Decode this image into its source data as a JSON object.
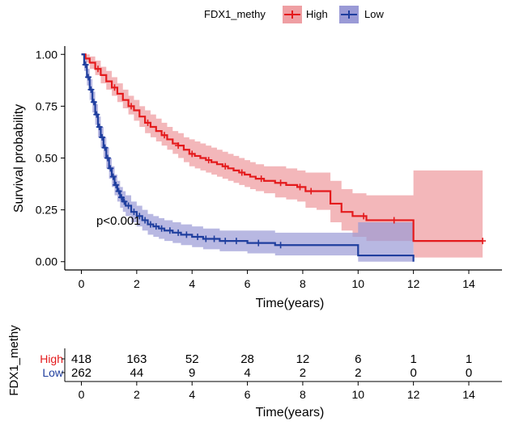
{
  "chart_data": {
    "type": "line",
    "subtype": "kaplan-meier survival curve with 95% confidence bands and number-at-risk table",
    "legend": {
      "title": "FDX1_methy",
      "position": "top",
      "entries": [
        "High",
        "Low"
      ]
    },
    "ylabel": "Survival probability",
    "xlabel": "Time(years)",
    "xlim": [
      -0.6,
      15.2
    ],
    "ylim": [
      -0.04,
      1.04
    ],
    "xticks": [
      0,
      2,
      4,
      6,
      8,
      10,
      12,
      14
    ],
    "x_tick_labels": [
      "0",
      "2",
      "4",
      "6",
      "8",
      "10",
      "12",
      "14"
    ],
    "yticks": [
      0,
      0.25,
      0.5,
      0.75,
      1.0
    ],
    "y_tick_labels": [
      "0.00",
      "0.25",
      "0.50",
      "0.75",
      "1.00"
    ],
    "grid": false,
    "annotation": {
      "text": "p<0.001",
      "x": 0.3,
      "y": 0.18
    },
    "series": [
      {
        "name": "High",
        "color": "#e41a1c",
        "band_color": "#ef9fa3",
        "x": [
          0,
          0.15,
          0.3,
          0.5,
          0.7,
          0.9,
          1.1,
          1.3,
          1.5,
          1.7,
          1.9,
          2.1,
          2.3,
          2.5,
          2.7,
          2.9,
          3.1,
          3.3,
          3.5,
          3.7,
          3.9,
          4.1,
          4.3,
          4.5,
          4.7,
          4.9,
          5.1,
          5.3,
          5.5,
          5.7,
          5.9,
          6.1,
          6.3,
          6.6,
          7.0,
          7.4,
          7.8,
          8.1,
          8.5,
          9.0,
          9.4,
          9.8,
          10.3,
          11.0,
          11.9,
          12.0,
          14.5
        ],
        "y": [
          1.0,
          0.98,
          0.96,
          0.93,
          0.9,
          0.87,
          0.84,
          0.81,
          0.78,
          0.75,
          0.73,
          0.7,
          0.67,
          0.65,
          0.63,
          0.61,
          0.59,
          0.57,
          0.56,
          0.54,
          0.52,
          0.51,
          0.5,
          0.49,
          0.48,
          0.47,
          0.46,
          0.45,
          0.44,
          0.43,
          0.42,
          0.41,
          0.4,
          0.39,
          0.38,
          0.37,
          0.36,
          0.34,
          0.34,
          0.28,
          0.24,
          0.22,
          0.2,
          0.2,
          0.2,
          0.1,
          0.1
        ],
        "lower": [
          1.0,
          0.96,
          0.93,
          0.9,
          0.86,
          0.83,
          0.8,
          0.77,
          0.74,
          0.71,
          0.68,
          0.65,
          0.62,
          0.6,
          0.58,
          0.56,
          0.54,
          0.52,
          0.5,
          0.48,
          0.46,
          0.45,
          0.44,
          0.43,
          0.42,
          0.41,
          0.4,
          0.39,
          0.38,
          0.37,
          0.36,
          0.35,
          0.34,
          0.33,
          0.31,
          0.3,
          0.29,
          0.26,
          0.25,
          0.19,
          0.15,
          0.12,
          0.1,
          0.1,
          0.1,
          0.02,
          0.02
        ],
        "upper": [
          1.0,
          1.0,
          0.99,
          0.97,
          0.94,
          0.92,
          0.89,
          0.86,
          0.83,
          0.8,
          0.78,
          0.75,
          0.73,
          0.71,
          0.69,
          0.67,
          0.65,
          0.63,
          0.62,
          0.6,
          0.59,
          0.58,
          0.57,
          0.56,
          0.55,
          0.54,
          0.53,
          0.52,
          0.51,
          0.5,
          0.49,
          0.48,
          0.47,
          0.46,
          0.46,
          0.45,
          0.44,
          0.43,
          0.43,
          0.39,
          0.35,
          0.33,
          0.32,
          0.32,
          0.32,
          0.44,
          0.44
        ],
        "censor_x": [
          0.6,
          1.2,
          1.8,
          2.4,
          3.0,
          3.5,
          4.0,
          4.6,
          5.2,
          5.8,
          6.5,
          7.2,
          7.9,
          8.3,
          10.2,
          11.3,
          14.5
        ]
      },
      {
        "name": "Low",
        "color": "#1f3e9e",
        "band_color": "#9a9ad6",
        "x": [
          0,
          0.1,
          0.2,
          0.3,
          0.4,
          0.5,
          0.6,
          0.7,
          0.8,
          0.9,
          1.0,
          1.1,
          1.2,
          1.3,
          1.4,
          1.5,
          1.6,
          1.8,
          2.0,
          2.2,
          2.4,
          2.6,
          2.8,
          3.0,
          3.3,
          3.6,
          4.0,
          4.4,
          5.0,
          6.0,
          7.0,
          8.0,
          9.0,
          10.0,
          11.0,
          12.0
        ],
        "y": [
          1.0,
          0.95,
          0.89,
          0.83,
          0.77,
          0.71,
          0.65,
          0.6,
          0.55,
          0.5,
          0.45,
          0.41,
          0.37,
          0.34,
          0.31,
          0.29,
          0.27,
          0.24,
          0.22,
          0.2,
          0.18,
          0.17,
          0.16,
          0.15,
          0.14,
          0.13,
          0.12,
          0.11,
          0.1,
          0.09,
          0.08,
          0.08,
          0.08,
          0.03,
          0.03,
          0.0
        ],
        "lower": [
          1.0,
          0.92,
          0.85,
          0.78,
          0.72,
          0.66,
          0.6,
          0.55,
          0.5,
          0.45,
          0.4,
          0.36,
          0.32,
          0.29,
          0.26,
          0.24,
          0.22,
          0.19,
          0.17,
          0.15,
          0.13,
          0.12,
          0.11,
          0.1,
          0.09,
          0.08,
          0.07,
          0.06,
          0.05,
          0.04,
          0.03,
          0.03,
          0.03,
          0.0,
          0.0,
          0.0
        ],
        "upper": [
          1.0,
          0.98,
          0.93,
          0.88,
          0.82,
          0.76,
          0.7,
          0.65,
          0.6,
          0.55,
          0.5,
          0.46,
          0.42,
          0.39,
          0.36,
          0.34,
          0.32,
          0.29,
          0.27,
          0.25,
          0.23,
          0.22,
          0.21,
          0.2,
          0.19,
          0.18,
          0.17,
          0.16,
          0.15,
          0.15,
          0.14,
          0.14,
          0.14,
          0.19,
          0.19,
          0.19
        ],
        "censor_x": [
          0.15,
          0.25,
          0.35,
          0.45,
          0.55,
          0.65,
          0.75,
          0.85,
          0.95,
          1.05,
          1.15,
          1.25,
          1.35,
          1.45,
          1.55,
          1.7,
          1.9,
          2.1,
          2.3,
          2.5,
          2.7,
          2.9,
          3.2,
          3.5,
          3.8,
          4.2,
          4.5,
          4.8,
          5.2,
          5.6,
          6.4,
          7.2
        ]
      }
    ],
    "risk_table": {
      "ylabel": "FDX1_methy",
      "xlabel": "Time(years)",
      "times": [
        0,
        2,
        4,
        6,
        8,
        10,
        12,
        14
      ],
      "time_labels": [
        "0",
        "2",
        "4",
        "6",
        "8",
        "10",
        "12",
        "14"
      ],
      "rows": [
        {
          "label": "High",
          "color": "#e41a1c",
          "counts": [
            "418",
            "163",
            "52",
            "28",
            "12",
            "6",
            "1",
            "1"
          ]
        },
        {
          "label": "Low",
          "color": "#1f3e9e",
          "counts": [
            "262",
            "44",
            "9",
            "4",
            "2",
            "2",
            "0",
            "0"
          ]
        }
      ]
    }
  }
}
